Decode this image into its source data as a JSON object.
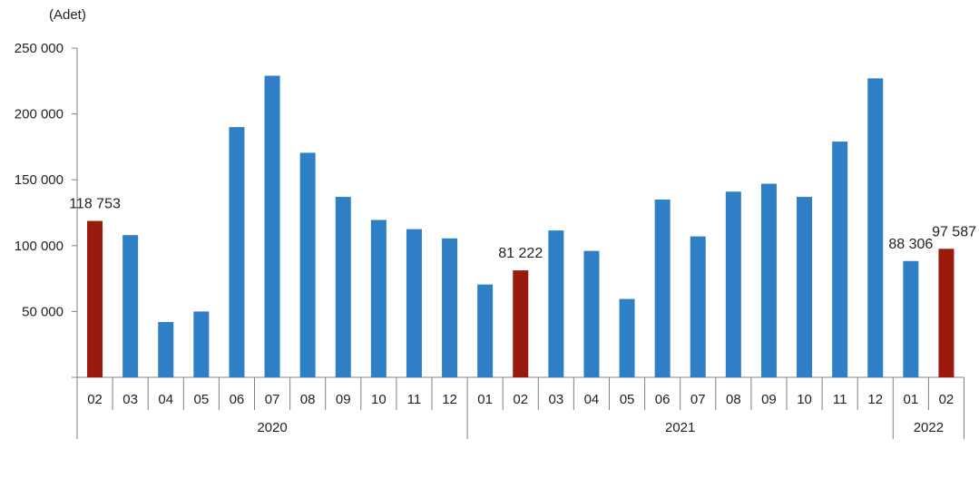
{
  "chart_data": {
    "type": "bar",
    "unit_label": "(Adet)",
    "y_ticks": [
      "250 000",
      "200 000",
      "150 000",
      "100 000",
      "50 000"
    ],
    "y_tick_values": [
      250000,
      200000,
      150000,
      100000,
      50000
    ],
    "ylim": [
      0,
      250000
    ],
    "grid": false,
    "legend": "none",
    "categories": [
      "02",
      "03",
      "04",
      "05",
      "06",
      "07",
      "08",
      "09",
      "10",
      "11",
      "12",
      "01",
      "02",
      "03",
      "04",
      "05",
      "06",
      "07",
      "08",
      "09",
      "10",
      "11",
      "12",
      "01",
      "02"
    ],
    "years": [
      {
        "label": "2020",
        "start": 0,
        "end": 10
      },
      {
        "label": "2021",
        "start": 11,
        "end": 22
      },
      {
        "label": "2022",
        "start": 23,
        "end": 24
      }
    ],
    "values": [
      118753,
      108000,
      42000,
      50000,
      190000,
      229000,
      170500,
      137000,
      119500,
      112500,
      105500,
      70500,
      81222,
      111500,
      96000,
      59500,
      135000,
      107000,
      141000,
      147000,
      137000,
      179000,
      227000,
      88306,
      97587
    ],
    "highlight_indices": [
      0,
      12,
      24
    ],
    "data_labels": [
      {
        "index": 0,
        "text": "118 753"
      },
      {
        "index": 12,
        "text": "81 222"
      },
      {
        "index": 23,
        "text": "88 306"
      },
      {
        "index": 24,
        "text": "97 587"
      }
    ],
    "colors": {
      "default": "#2f7fc6",
      "highlight": "#9b1a0e",
      "axis": "#808080"
    }
  }
}
